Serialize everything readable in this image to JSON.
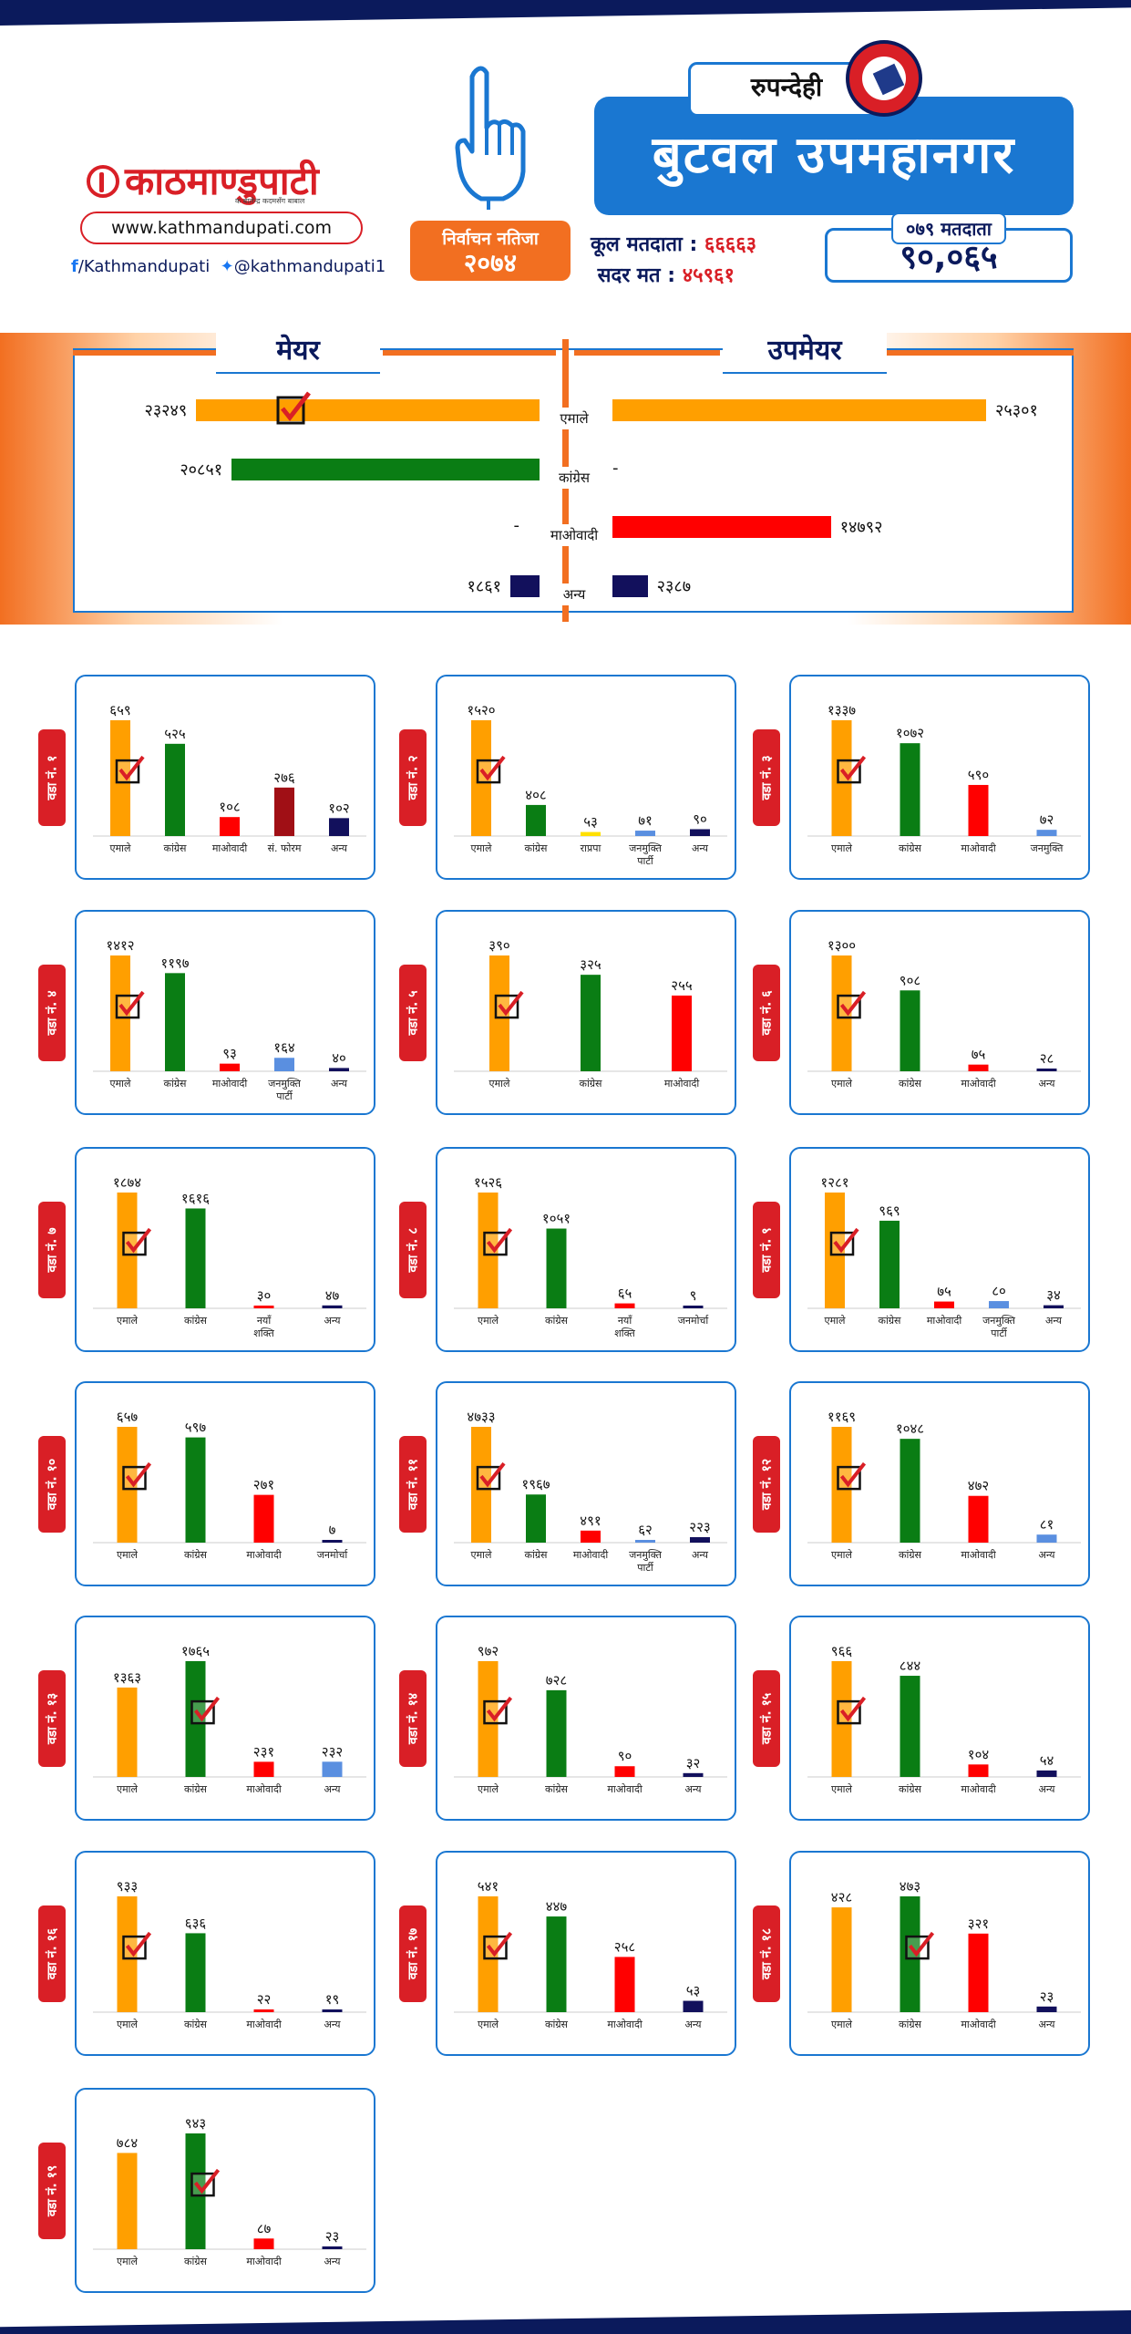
{
  "header": {
    "brand": "काठमाण्डुपाटी",
    "tagline": "क बालेन्द्र कदमसँग बाबाल",
    "site": "www.kathmandupati.com",
    "facebook": "/Kathmandupati",
    "twitter": "@kathmandupati1",
    "badge_line1": "निर्वाचन नतिजा",
    "badge_line2": "२०७४",
    "district": "रुपन्देही",
    "city": "बुटवल उपमहानगर",
    "total_voters_label": "कूल मतदाता :",
    "total_voters": "६६६६३",
    "valid_votes_label": "सदर मत :",
    "valid_votes": "४५९६१",
    "voters_079_label": "०७९ मतदाता",
    "voters_079": "९०,०६५"
  },
  "colors": {
    "एमाले": "#ff9f00",
    "कांग्रेस": "#0a7d14",
    "माओवादी": "#ff0000",
    "अन्य": "#12105c",
    "मुख्य": "#1a77d1",
    "राप्रपा": "#ffe000",
    "संघीय": "#a00f15",
    "जनमुक्ति": "#5a8fe0"
  },
  "mayor": {
    "title": "मेयर",
    "deputy_title": "उपमेयर",
    "parties": [
      "एमाले",
      "कांग्रेस",
      "माओवादी",
      "अन्य"
    ],
    "mayor_values": [
      23249,
      20851,
      0,
      1861
    ],
    "mayor_labels": [
      "२३२४९",
      "२०८५१",
      "-",
      "१८६१"
    ],
    "deputy_values": [
      25301,
      0,
      14792,
      2387
    ],
    "deputy_labels": [
      "२५३०१",
      "-",
      "१४७९२",
      "२३८७"
    ],
    "mayor_winner": "एमाले"
  },
  "chart_data": [
    {
      "type": "bar",
      "title": "वडा नं. १",
      "categories": [
        "एमाले",
        "कांग्रेस",
        "माओवादी",
        "सं. फोरम",
        "अन्य"
      ],
      "values": [
        659,
        525,
        108,
        276,
        102
      ],
      "labels": [
        "६५९",
        "५२५",
        "१०८",
        "२७६",
        "१०२"
      ],
      "colors": [
        "#ff9f00",
        "#0a7d14",
        "#ff0000",
        "#a00f15",
        "#12105c"
      ],
      "winner": 0
    },
    {
      "type": "bar",
      "title": "वडा नं. २",
      "categories": [
        "एमाले",
        "कांग्रेस",
        "राप्रपा",
        "जनमुक्ति पार्टी",
        "अन्य"
      ],
      "values": [
        1520,
        408,
        53,
        71,
        90
      ],
      "labels": [
        "१५२०",
        "४०८",
        "५३",
        "७१",
        "९०"
      ],
      "colors": [
        "#ff9f00",
        "#0a7d14",
        "#ffe000",
        "#5a8fe0",
        "#12105c"
      ],
      "winner": 0
    },
    {
      "type": "bar",
      "title": "वडा नं. ३",
      "categories": [
        "एमाले",
        "कांग्रेस",
        "माओवादी",
        "जनमुक्ति"
      ],
      "values": [
        1337,
        1072,
        590,
        72
      ],
      "labels": [
        "१३३७",
        "१०७२",
        "५९०",
        "७२"
      ],
      "colors": [
        "#ff9f00",
        "#0a7d14",
        "#ff0000",
        "#5a8fe0"
      ],
      "winner": 0
    },
    {
      "type": "bar",
      "title": "वडा नं. ४",
      "categories": [
        "एमाले",
        "कांग्रेस",
        "माओवादी",
        "जनमुक्ति पार्टी",
        "अन्य"
      ],
      "values": [
        1412,
        1197,
        93,
        164,
        40
      ],
      "labels": [
        "१४१२",
        "११९७",
        "९३",
        "१६४",
        "४०"
      ],
      "colors": [
        "#ff9f00",
        "#0a7d14",
        "#ff0000",
        "#5a8fe0",
        "#12105c"
      ],
      "winner": 0
    },
    {
      "type": "bar",
      "title": "वडा नं. ५",
      "categories": [
        "एमाले",
        "कांग्रेस",
        "माओवादी"
      ],
      "values": [
        390,
        325,
        255
      ],
      "labels": [
        "३९०",
        "३२५",
        "२५५"
      ],
      "colors": [
        "#ff9f00",
        "#0a7d14",
        "#ff0000"
      ],
      "winner": 0
    },
    {
      "type": "bar",
      "title": "वडा नं. ६",
      "categories": [
        "एमाले",
        "कांग्रेस",
        "माओवादी",
        "अन्य"
      ],
      "values": [
        1300,
        908,
        75,
        28
      ],
      "labels": [
        "१३००",
        "९०८",
        "७५",
        "२८"
      ],
      "colors": [
        "#ff9f00",
        "#0a7d14",
        "#ff0000",
        "#12105c"
      ],
      "winner": 0
    },
    {
      "type": "bar",
      "title": "वडा नं. ७",
      "categories": [
        "एमाले",
        "कांग्रेस",
        "नयाँ शक्ति",
        "अन्य"
      ],
      "values": [
        1874,
        1616,
        30,
        47
      ],
      "labels": [
        "१८७४",
        "१६१६",
        "३०",
        "४७"
      ],
      "colors": [
        "#ff9f00",
        "#0a7d14",
        "#ff0000",
        "#12105c"
      ],
      "winner": 0
    },
    {
      "type": "bar",
      "title": "वडा नं. ८",
      "categories": [
        "एमाले",
        "कांग्रेस",
        "नयाँ शक्ति",
        "जनमोर्चा"
      ],
      "values": [
        1526,
        1051,
        65,
        9
      ],
      "labels": [
        "१५२६",
        "१०५१",
        "६५",
        "९"
      ],
      "colors": [
        "#ff9f00",
        "#0a7d14",
        "#ff0000",
        "#12105c"
      ],
      "winner": 0
    },
    {
      "type": "bar",
      "title": "वडा नं. ९",
      "categories": [
        "एमाले",
        "कांग्रेस",
        "माओवादी",
        "जनमुक्ति पार्टी",
        "अन्य"
      ],
      "values": [
        1281,
        969,
        75,
        80,
        34
      ],
      "labels": [
        "१२८१",
        "९६९",
        "७५",
        "८०",
        "३४"
      ],
      "colors": [
        "#ff9f00",
        "#0a7d14",
        "#ff0000",
        "#5a8fe0",
        "#12105c"
      ],
      "winner": 0
    },
    {
      "type": "bar",
      "title": "वडा नं. १०",
      "categories": [
        "एमाले",
        "कांग्रेस",
        "माओवादी",
        "जनमोर्चा"
      ],
      "values": [
        657,
        597,
        271,
        7
      ],
      "labels": [
        "६५७",
        "५९७",
        "२७१",
        "७"
      ],
      "colors": [
        "#ff9f00",
        "#0a7d14",
        "#ff0000",
        "#12105c"
      ],
      "winner": 0
    },
    {
      "type": "bar",
      "title": "वडा नं. ११",
      "categories": [
        "एमाले",
        "कांग्रेस",
        "माओवादी",
        "जनमुक्ति पार्टी",
        "अन्य"
      ],
      "values": [
        4733,
        1967,
        491,
        62,
        223
      ],
      "labels": [
        "४७३३",
        "१९६७",
        "४९१",
        "६२",
        "२२३"
      ],
      "colors": [
        "#ff9f00",
        "#0a7d14",
        "#ff0000",
        "#5a8fe0",
        "#12105c"
      ],
      "winner": 0
    },
    {
      "type": "bar",
      "title": "वडा नं. १२",
      "categories": [
        "एमाले",
        "कांग्रेस",
        "माओवादी",
        "अन्य"
      ],
      "values": [
        1169,
        1048,
        472,
        81
      ],
      "labels": [
        "११६९",
        "१०४८",
        "४७२",
        "८१"
      ],
      "colors": [
        "#ff9f00",
        "#0a7d14",
        "#ff0000",
        "#5a8fe0"
      ],
      "winner": 0
    },
    {
      "type": "bar",
      "title": "वडा नं. १३",
      "categories": [
        "एमाले",
        "कांग्रेस",
        "माओवादी",
        "अन्य"
      ],
      "values": [
        1363,
        1765,
        231,
        232
      ],
      "labels": [
        "१३६३",
        "१७६५",
        "२३१",
        "२३२"
      ],
      "colors": [
        "#ff9f00",
        "#0a7d14",
        "#ff0000",
        "#5a8fe0"
      ],
      "winner": 1
    },
    {
      "type": "bar",
      "title": "वडा नं. १४",
      "categories": [
        "एमाले",
        "कांग्रेस",
        "माओवादी",
        "अन्य"
      ],
      "values": [
        972,
        728,
        90,
        32
      ],
      "labels": [
        "९७२",
        "७२८",
        "९०",
        "३२"
      ],
      "colors": [
        "#ff9f00",
        "#0a7d14",
        "#ff0000",
        "#12105c"
      ],
      "winner": 0
    },
    {
      "type": "bar",
      "title": "वडा नं. १५",
      "categories": [
        "एमाले",
        "कांग्रेस",
        "माओवादी",
        "अन्य"
      ],
      "values": [
        966,
        844,
        104,
        54
      ],
      "labels": [
        "९६६",
        "८४४",
        "१०४",
        "५४"
      ],
      "colors": [
        "#ff9f00",
        "#0a7d14",
        "#ff0000",
        "#12105c"
      ],
      "winner": 0
    },
    {
      "type": "bar",
      "title": "वडा नं. १६",
      "categories": [
        "एमाले",
        "कांग्रेस",
        "माओवादी",
        "अन्य"
      ],
      "values": [
        933,
        636,
        22,
        19
      ],
      "labels": [
        "९३३",
        "६३६",
        "२२",
        "१९"
      ],
      "colors": [
        "#ff9f00",
        "#0a7d14",
        "#ff0000",
        "#12105c"
      ],
      "winner": 0
    },
    {
      "type": "bar",
      "title": "वडा नं. १७",
      "categories": [
        "एमाले",
        "कांग्रेस",
        "माओवादी",
        "अन्य"
      ],
      "values": [
        541,
        447,
        258,
        53
      ],
      "labels": [
        "५४१",
        "४४७",
        "२५८",
        "५३"
      ],
      "colors": [
        "#ff9f00",
        "#0a7d14",
        "#ff0000",
        "#12105c"
      ],
      "winner": 0
    },
    {
      "type": "bar",
      "title": "वडा नं. १८",
      "categories": [
        "एमाले",
        "कांग्रेस",
        "माओवादी",
        "अन्य"
      ],
      "values": [
        428,
        473,
        321,
        23
      ],
      "labels": [
        "४२८",
        "४७३",
        "३२१",
        "२३"
      ],
      "colors": [
        "#ff9f00",
        "#0a7d14",
        "#ff0000",
        "#12105c"
      ],
      "winner": 1
    },
    {
      "type": "bar",
      "title": "वडा नं. १९",
      "categories": [
        "एमाले",
        "कांग्रेस",
        "माओवादी",
        "अन्य"
      ],
      "values": [
        784,
        943,
        87,
        23
      ],
      "labels": [
        "७८४",
        "९४३",
        "८७",
        "२३"
      ],
      "colors": [
        "#ff9f00",
        "#0a7d14",
        "#ff0000",
        "#12105c"
      ],
      "winner": 1
    }
  ],
  "watermark": "काठमाण्डुपाटी"
}
